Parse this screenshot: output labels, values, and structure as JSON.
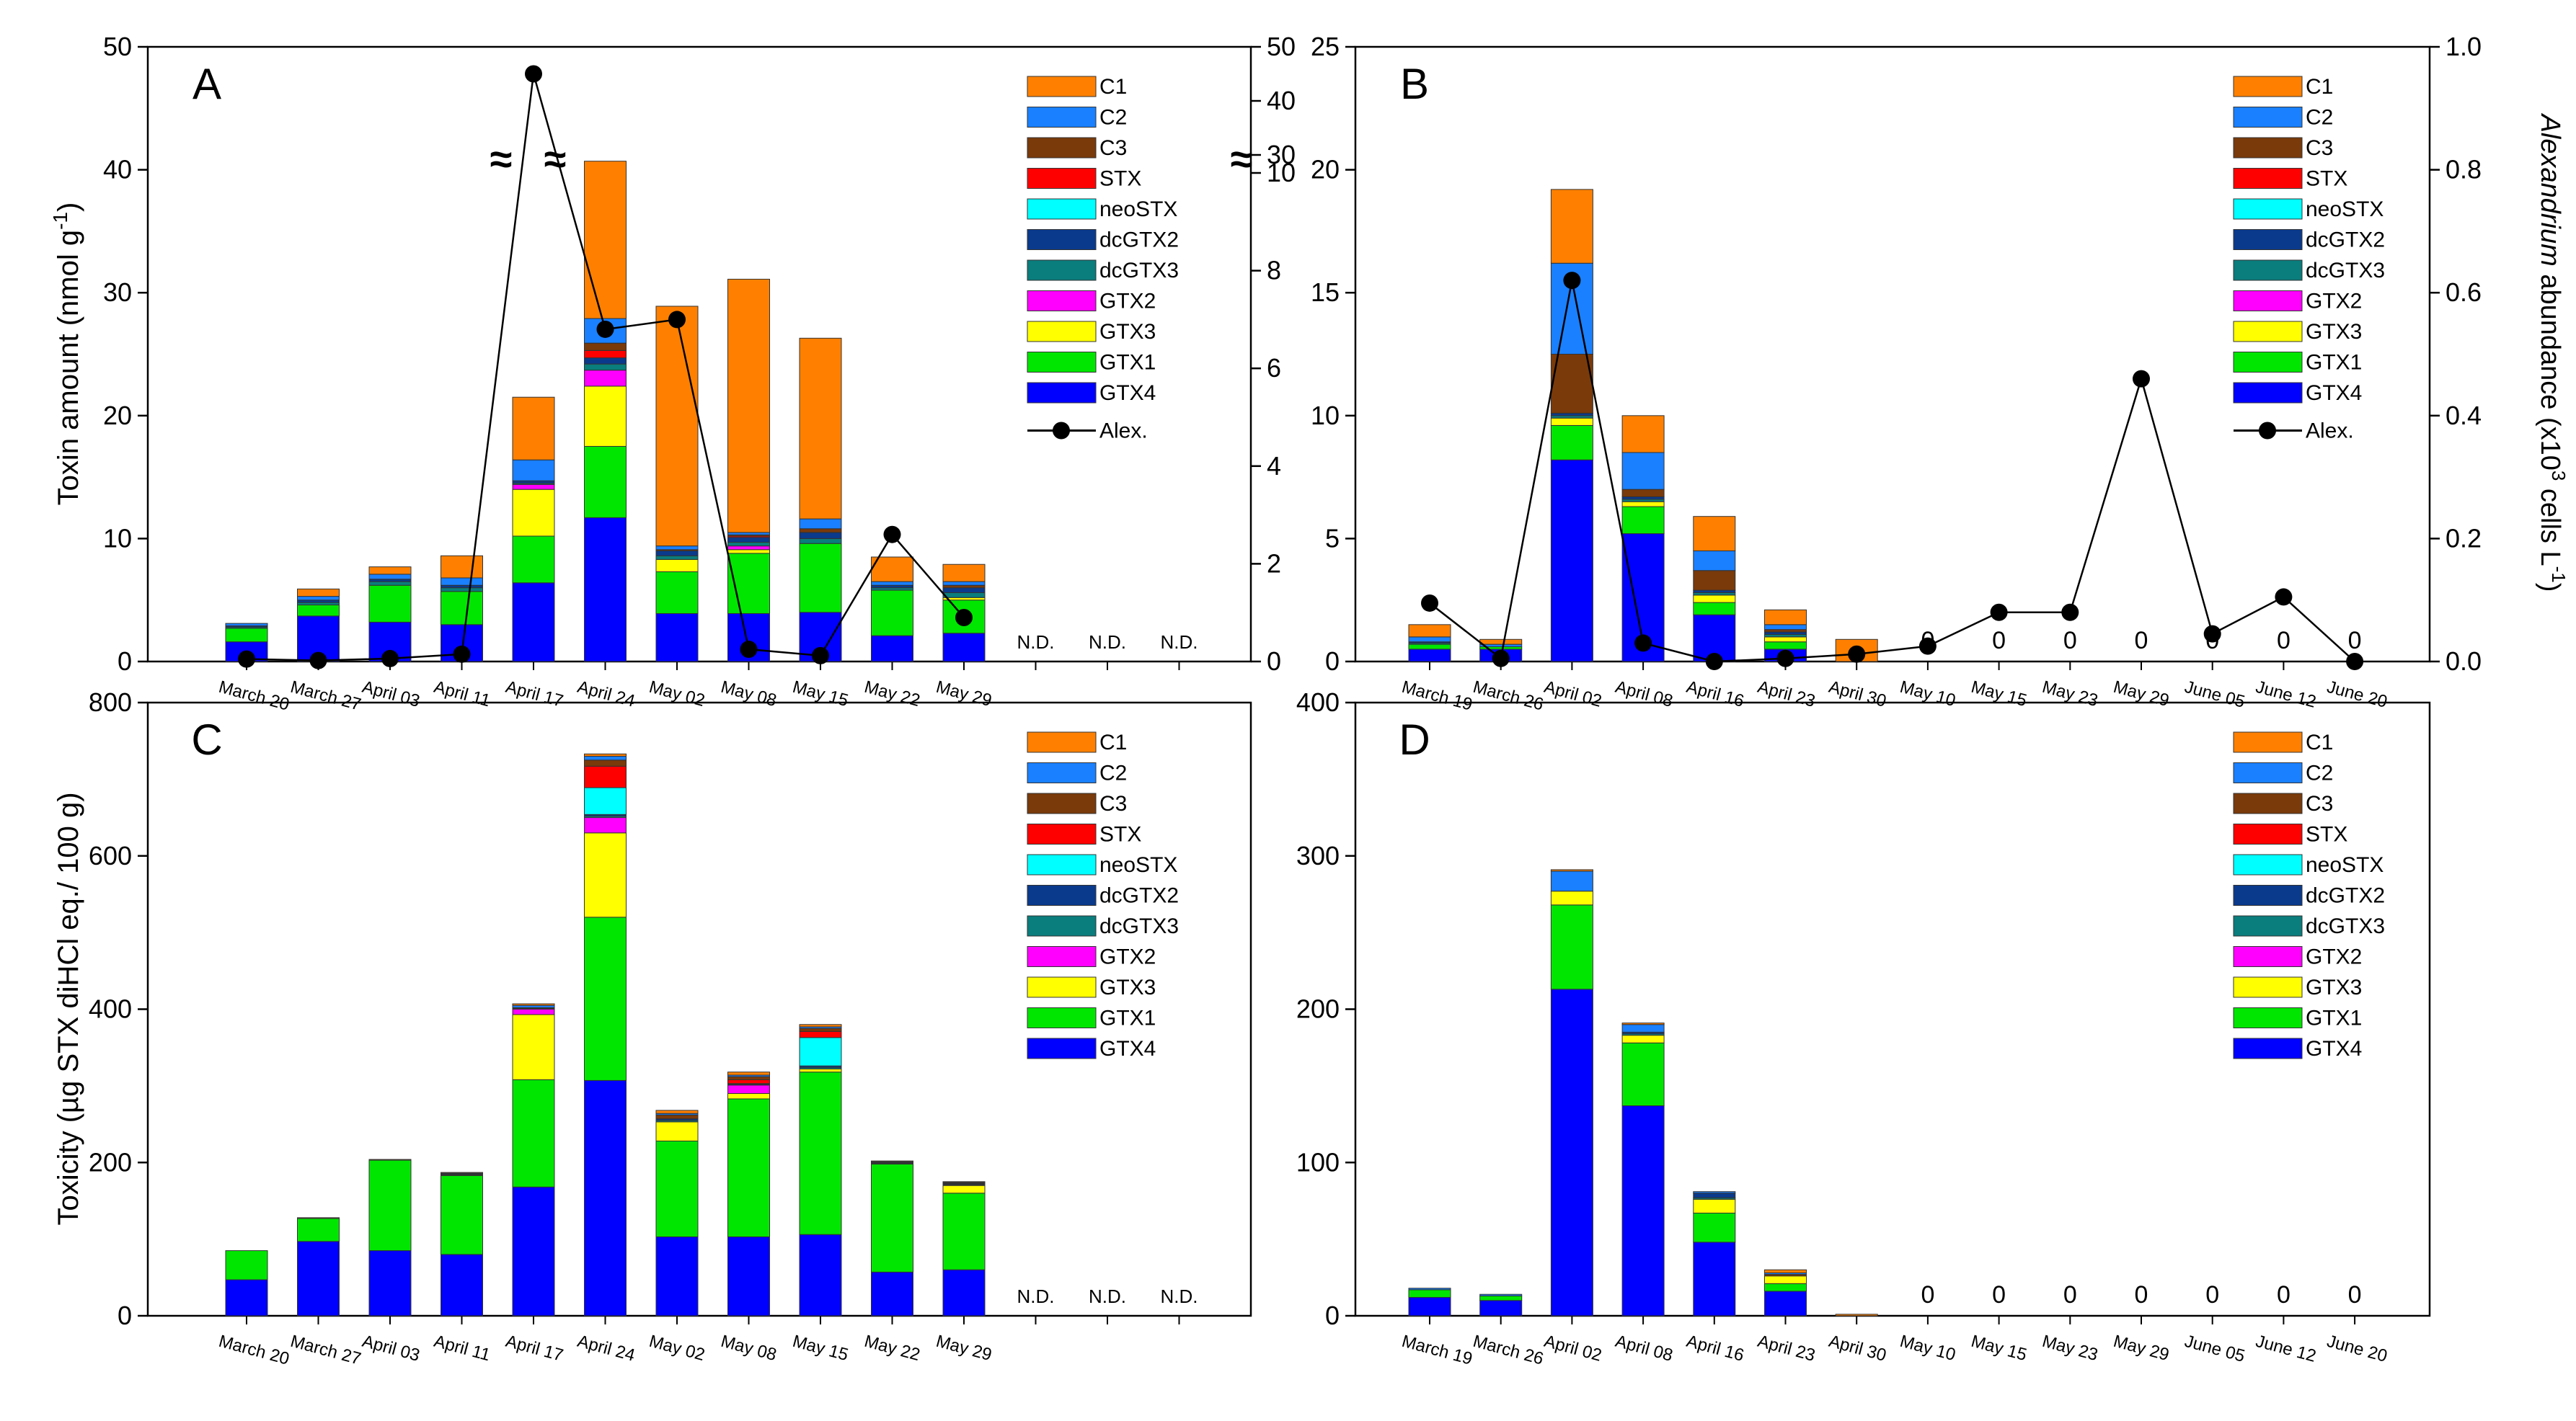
{
  "components": [
    "GTX4",
    "GTX1",
    "GTX3",
    "GTX2",
    "dcGTX3",
    "dcGTX2",
    "neoSTX",
    "STX",
    "C3",
    "C2",
    "C1"
  ],
  "legend_order": [
    "C1",
    "C2",
    "C3",
    "STX",
    "neoSTX",
    "dcGTX2",
    "dcGTX3",
    "GTX2",
    "GTX3",
    "GTX1",
    "GTX4"
  ],
  "colors": {
    "C1": "#ff8000",
    "C2": "#1a80ff",
    "C3": "#7a3a0a",
    "STX": "#ff0000",
    "neoSTX": "#00ffff",
    "dcGTX2": "#0a3a8c",
    "dcGTX3": "#0a7d7d",
    "GTX2": "#ff00ff",
    "GTX3": "#ffff00",
    "GTX1": "#00e600",
    "GTX4": "#0000ff"
  },
  "alex_label": "Alex.",
  "right_axis_label": {
    "italic": "Alexandrium",
    "rest": " abundance (x10",
    "sup1": "3",
    "mid": " cells L",
    "sup2": "-1",
    "end": ")"
  },
  "chart_data": [
    {
      "panel": "A",
      "type": "bar",
      "stacked": true,
      "ylabel": "Toxin amount (nmol g-1)",
      "ylim": [
        0,
        50
      ],
      "yticks": [
        0,
        10,
        20,
        30,
        40,
        50
      ],
      "categories": [
        "March 20",
        "March 27",
        "April 03",
        "April 11",
        "April 17",
        "April 24",
        "May 02",
        "May 08",
        "May 15",
        "May 22",
        "May 29",
        "",
        "",
        ""
      ],
      "series": {
        "GTX4": [
          1.6,
          3.7,
          3.2,
          3.0,
          6.4,
          11.7,
          3.9,
          3.9,
          4.0,
          2.1,
          2.3,
          null,
          null,
          null
        ],
        "GTX1": [
          1.1,
          0.9,
          3.0,
          2.7,
          3.8,
          5.8,
          3.4,
          4.9,
          5.6,
          3.7,
          2.7,
          null,
          null,
          null
        ],
        "GTX3": [
          0,
          0,
          0,
          0,
          3.8,
          4.9,
          1.0,
          0.3,
          0,
          0,
          0.2,
          null,
          null,
          null
        ],
        "GTX2": [
          0,
          0,
          0,
          0,
          0.4,
          1.3,
          0,
          0.3,
          0,
          0,
          0,
          null,
          null,
          null
        ],
        "dcGTX3": [
          0.1,
          0.2,
          0.3,
          0.3,
          0.1,
          0.5,
          0.3,
          0.3,
          0.4,
          0.2,
          0.4,
          null,
          null,
          null
        ],
        "dcGTX2": [
          0.1,
          0.2,
          0.2,
          0.2,
          0.2,
          0.5,
          0.4,
          0.4,
          0.5,
          0.2,
          0.4,
          null,
          null,
          null
        ],
        "neoSTX": [
          0,
          0,
          0,
          0,
          0,
          0,
          0,
          0,
          0,
          0,
          0,
          null,
          null,
          null
        ],
        "STX": [
          0,
          0,
          0,
          0,
          0,
          0.6,
          0,
          0.1,
          0,
          0,
          0,
          null,
          null,
          null
        ],
        "C3": [
          0,
          0,
          0,
          0,
          0,
          0.6,
          0.1,
          0.1,
          0.3,
          0,
          0.2,
          null,
          null,
          null
        ],
        "C2": [
          0.2,
          0.3,
          0.4,
          0.6,
          1.7,
          2.0,
          0.3,
          0.2,
          0.8,
          0.3,
          0.3,
          null,
          null,
          null
        ],
        "C1": [
          0,
          0.6,
          0.6,
          1.8,
          5.1,
          12.8,
          19.5,
          20.6,
          14.7,
          2.0,
          1.4,
          null,
          null,
          null
        ]
      },
      "nd_labels": [
        "N.D.",
        "N.D.",
        "N.D."
      ],
      "alex": [
        0.05,
        0.02,
        0.06,
        0.15,
        45,
        6.8,
        7.0,
        0.25,
        0.12,
        2.6,
        0.9,
        null,
        null,
        null
      ],
      "alex_axis_ticks": [
        "0",
        "2",
        "4",
        "6",
        "8",
        "10",
        "30",
        "40",
        "50"
      ]
    },
    {
      "panel": "B",
      "type": "bar",
      "stacked": true,
      "ylim": [
        0,
        25
      ],
      "yticks": [
        0,
        5,
        10,
        15,
        20,
        25
      ],
      "y2lim": [
        0,
        1.0
      ],
      "y2ticks": [
        "0.0",
        "0.2",
        "0.4",
        "0.6",
        "0.8",
        "1.0"
      ],
      "categories": [
        "March 19",
        "March 26",
        "April 02",
        "April 08",
        "April 16",
        "April 23",
        "April 30",
        "May 10",
        "May 15",
        "May 23",
        "May 29",
        "June 05",
        "June 12",
        "June 20"
      ],
      "series": {
        "GTX4": [
          0.5,
          0.5,
          8.2,
          5.2,
          1.9,
          0.5,
          0,
          0,
          0,
          0,
          0,
          0,
          0,
          0
        ],
        "GTX1": [
          0.2,
          0.1,
          1.4,
          1.1,
          0.5,
          0.3,
          0,
          0,
          0,
          0,
          0,
          0,
          0,
          0
        ],
        "GTX3": [
          0,
          0,
          0.3,
          0.2,
          0.3,
          0.2,
          0,
          0,
          0,
          0,
          0,
          0,
          0,
          0
        ],
        "GTX2": [
          0,
          0,
          0,
          0,
          0,
          0,
          0,
          0,
          0,
          0,
          0,
          0,
          0,
          0
        ],
        "dcGTX3": [
          0.05,
          0,
          0.1,
          0.1,
          0.1,
          0.1,
          0,
          0,
          0,
          0,
          0,
          0,
          0,
          0
        ],
        "dcGTX2": [
          0.05,
          0,
          0.1,
          0.1,
          0.1,
          0.1,
          0,
          0,
          0,
          0,
          0,
          0,
          0,
          0
        ],
        "neoSTX": [
          0,
          0,
          0,
          0,
          0,
          0,
          0,
          0,
          0,
          0,
          0,
          0,
          0,
          0
        ],
        "STX": [
          0,
          0,
          0,
          0,
          0,
          0,
          0,
          0,
          0,
          0,
          0,
          0,
          0,
          0
        ],
        "C3": [
          0,
          0,
          2.4,
          0.3,
          0.8,
          0.1,
          0,
          0,
          0,
          0,
          0,
          0,
          0,
          0
        ],
        "C2": [
          0.2,
          0.1,
          3.7,
          1.5,
          0.8,
          0.2,
          0,
          0,
          0,
          0,
          0,
          0,
          0,
          0
        ],
        "C1": [
          0.5,
          0.2,
          3.0,
          1.5,
          1.4,
          0.6,
          0.9,
          0,
          0,
          0,
          0,
          0,
          0,
          0
        ]
      },
      "zero_labels": [
        "",
        "",
        "",
        "",
        "",
        "",
        "",
        "0",
        "0",
        "0",
        "0",
        "0",
        "0",
        "0"
      ],
      "alex": [
        0.095,
        0.005,
        0.62,
        0.03,
        0.0,
        0.005,
        0.012,
        0.025,
        0.08,
        0.08,
        0.46,
        0.045,
        0.105,
        0.0
      ]
    },
    {
      "panel": "C",
      "type": "bar",
      "stacked": true,
      "ylabel": "Toxicity (µg STX diHCl eq./ 100 g)",
      "ylim": [
        0,
        800
      ],
      "yticks": [
        0,
        200,
        400,
        600,
        800
      ],
      "categories": [
        "March 20",
        "March 27",
        "April 03",
        "April 11",
        "April 17",
        "April 24",
        "May 02",
        "May 08",
        "May 15",
        "May 22",
        "May 29",
        "",
        "",
        ""
      ],
      "series": {
        "GTX4": [
          47,
          97,
          85,
          80,
          168,
          307,
          103,
          103,
          106,
          57,
          60,
          null,
          null,
          null
        ],
        "GTX1": [
          38,
          30,
          118,
          103,
          140,
          213,
          125,
          180,
          212,
          141,
          100,
          null,
          null,
          null
        ],
        "GTX3": [
          0,
          0,
          0,
          0,
          85,
          110,
          25,
          7,
          4,
          0,
          10,
          null,
          null,
          null
        ],
        "GTX2": [
          0,
          0,
          0,
          0,
          7,
          20,
          0,
          11,
          0,
          0,
          0,
          null,
          null,
          null
        ],
        "dcGTX3": [
          0,
          0,
          0,
          1,
          1,
          2,
          2,
          1,
          2,
          1,
          1,
          null,
          null,
          null
        ],
        "dcGTX2": [
          0,
          0,
          0,
          1,
          1,
          2,
          2,
          1,
          2,
          1,
          1,
          null,
          null,
          null
        ],
        "neoSTX": [
          0,
          0,
          0,
          0,
          0,
          35,
          0,
          0,
          37,
          0,
          0,
          null,
          null,
          null
        ],
        "STX": [
          0,
          0,
          0,
          0,
          0,
          28,
          0,
          5,
          8,
          0,
          0,
          null,
          null,
          null
        ],
        "C3": [
          0,
          0,
          0,
          0,
          0,
          8,
          5,
          4,
          4,
          0,
          1,
          null,
          null,
          null
        ],
        "C2": [
          0,
          0,
          0,
          1,
          3,
          5,
          2,
          2,
          2,
          1,
          1,
          null,
          null,
          null
        ],
        "C1": [
          0,
          1,
          1,
          1,
          2,
          3,
          4,
          4,
          3,
          1,
          1,
          null,
          null,
          null
        ]
      },
      "nd_labels": [
        "N.D.",
        "N.D.",
        "N.D."
      ]
    },
    {
      "panel": "D",
      "type": "bar",
      "stacked": true,
      "ylim": [
        0,
        400
      ],
      "yticks": [
        0,
        100,
        200,
        300,
        400
      ],
      "categories": [
        "March 19",
        "March 26",
        "April 02",
        "April 08",
        "April 16",
        "April 23",
        "April 30",
        "May 10",
        "May 15",
        "May 23",
        "May 29",
        "June 05",
        "June 12",
        "June 20"
      ],
      "series": {
        "GTX4": [
          12,
          10,
          213,
          137,
          48,
          16,
          0,
          0,
          0,
          0,
          0,
          0,
          0,
          0
        ],
        "GTX1": [
          5,
          3,
          55,
          41,
          19,
          5,
          0,
          0,
          0,
          0,
          0,
          0,
          0,
          0
        ],
        "GTX3": [
          0,
          0,
          9,
          5,
          9,
          5,
          0,
          0,
          0,
          0,
          0,
          0,
          0,
          0
        ],
        "GTX2": [
          0,
          0,
          0,
          0,
          0,
          0,
          0,
          0,
          0,
          0,
          0,
          0,
          0,
          0
        ],
        "dcGTX3": [
          0,
          0,
          0,
          1,
          1,
          0,
          0,
          0,
          0,
          0,
          0,
          0,
          0,
          0
        ],
        "dcGTX2": [
          0,
          0,
          0,
          1,
          3,
          0,
          0,
          0,
          0,
          0,
          0,
          0,
          0,
          0
        ],
        "neoSTX": [
          0,
          0,
          0,
          0,
          0,
          0,
          0,
          0,
          0,
          0,
          0,
          0,
          0,
          0
        ],
        "STX": [
          0,
          0,
          0,
          0,
          0,
          0,
          0,
          0,
          0,
          0,
          0,
          0,
          0,
          0
        ],
        "C3": [
          0,
          0,
          0,
          0,
          0,
          1,
          0,
          0,
          0,
          0,
          0,
          0,
          0,
          0
        ],
        "C2": [
          1,
          1,
          13,
          5,
          1,
          1,
          0,
          0,
          0,
          0,
          0,
          0,
          0,
          0
        ],
        "C1": [
          0,
          0,
          1,
          1,
          0,
          2,
          1,
          0,
          0,
          0,
          0,
          0,
          0,
          0
        ]
      },
      "zero_labels": [
        "",
        "",
        "",
        "",
        "",
        "",
        "",
        "0",
        "0",
        "0",
        "0",
        "0",
        "0",
        "0"
      ]
    }
  ]
}
